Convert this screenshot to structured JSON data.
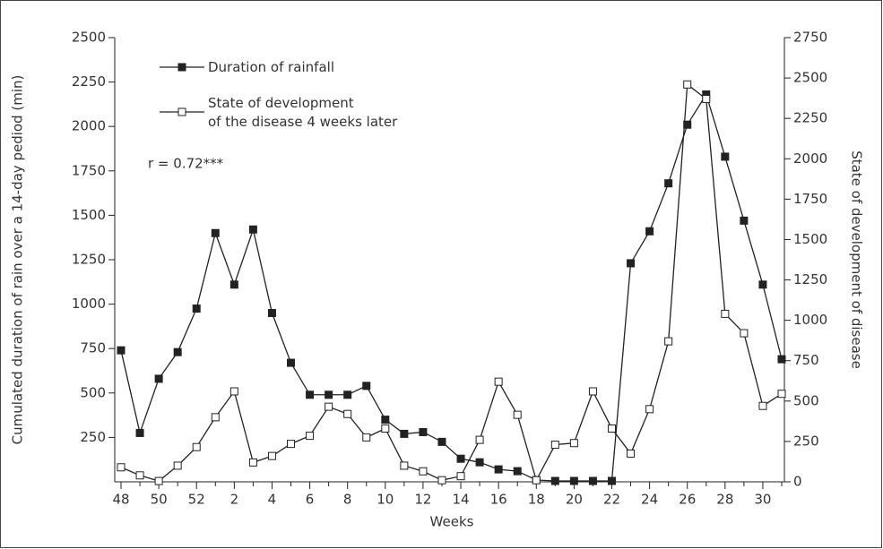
{
  "chart_data": {
    "type": "line",
    "y_label": "Cumulated duration of rain over a 14-day pediod (min)",
    "y2_label": "State of development of disease",
    "x_label": "Weeks",
    "annotation": "r = 0.72***",
    "categories": [
      "48",
      null,
      "50",
      null,
      "52",
      null,
      "2",
      null,
      "4",
      null,
      "6",
      null,
      "8",
      null,
      "10",
      null,
      "12",
      null,
      "14",
      null,
      "16",
      null,
      "18",
      null,
      "20",
      null,
      "22",
      null,
      "24",
      null,
      "26",
      null,
      "28",
      null,
      "30",
      null
    ],
    "series": [
      {
        "name": "Duration of rainfall",
        "color": "#222",
        "marker": "filled",
        "values": [
          740,
          275,
          580,
          730,
          975,
          1400,
          1110,
          1420,
          950,
          670,
          490,
          490,
          490,
          540,
          350,
          270,
          280,
          225,
          130,
          110,
          70,
          60,
          10,
          5,
          5,
          5,
          5,
          1230,
          1410,
          1680,
          2010,
          2180,
          1830,
          1470,
          1110,
          690
        ]
      },
      {
        "name": "State of development\nof the disease 4 weeks later",
        "color": "#222",
        "marker": "open",
        "axis": "y2",
        "values": [
          90,
          40,
          5,
          100,
          215,
          400,
          560,
          120,
          160,
          235,
          285,
          465,
          420,
          275,
          330,
          100,
          65,
          10,
          35,
          260,
          620,
          415,
          10,
          230,
          240,
          560,
          330,
          175,
          450,
          870,
          2460,
          2370,
          1040,
          920,
          470,
          545
        ]
      }
    ],
    "ylim": [
      0,
      2500
    ],
    "yticks": [
      250,
      500,
      750,
      1000,
      1250,
      1500,
      1750,
      2000,
      2250,
      2500
    ],
    "y2lim": [
      0,
      2750
    ],
    "y2ticks": [
      0,
      250,
      500,
      750,
      1000,
      1250,
      1500,
      1750,
      2000,
      2250,
      2500,
      2750
    ]
  }
}
